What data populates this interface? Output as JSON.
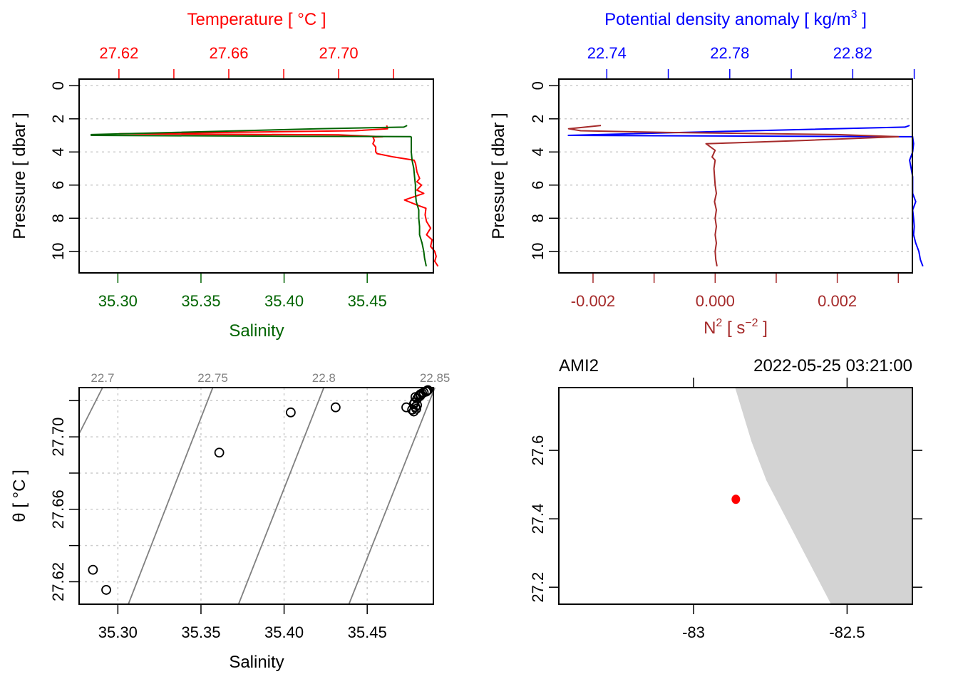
{
  "chart_data": [
    {
      "id": "profile-temperature-salinity",
      "type": "line",
      "title_top": "Temperature [ °C ]",
      "xlabel_bottom": "Salinity",
      "ylabel": "Pressure [ dbar ]",
      "colors": {
        "temperature": "#ff0000",
        "salinity": "#006400"
      },
      "top_axis": {
        "range": [
          27.6055,
          27.7345
        ],
        "ticks": [
          27.62,
          27.64,
          27.66,
          27.68,
          27.7,
          27.72
        ],
        "labels": [
          "27.62",
          "",
          "27.66",
          "",
          "27.70",
          ""
        ]
      },
      "bottom_axis": {
        "range": [
          35.2767,
          35.4898
        ],
        "ticks": [
          35.3,
          35.35,
          35.4,
          35.45
        ],
        "labels": [
          "35.30",
          "35.35",
          "35.40",
          "35.45"
        ]
      },
      "y_axis": {
        "range": [
          11.3,
          -0.4
        ],
        "ticks": [
          0,
          2,
          4,
          6,
          8,
          10
        ],
        "labels": [
          "0",
          "2",
          "4",
          "6",
          "8",
          "10"
        ],
        "grid": true
      },
      "series": [
        {
          "name": "Temperature",
          "axis": "top",
          "points": [
            [
              27.7175,
              2.4
            ],
            [
              27.7178,
              2.6
            ],
            [
              27.706,
              2.72
            ],
            [
              27.62,
              2.9
            ],
            [
              27.7,
              2.97
            ],
            [
              27.716,
              3.08
            ],
            [
              27.7125,
              3.1
            ],
            [
              27.713,
              3.3
            ],
            [
              27.7125,
              3.5
            ],
            [
              27.7135,
              3.7
            ],
            [
              27.7135,
              4.0
            ],
            [
              27.714,
              4.1
            ],
            [
              27.72,
              4.3
            ],
            [
              27.7275,
              4.5
            ],
            [
              27.728,
              4.7
            ],
            [
              27.7285,
              5.2
            ],
            [
              27.7295,
              5.6
            ],
            [
              27.7285,
              5.8
            ],
            [
              27.7302,
              6.0
            ],
            [
              27.7285,
              6.3
            ],
            [
              27.731,
              6.5
            ],
            [
              27.724,
              6.9
            ],
            [
              27.7285,
              7.2
            ],
            [
              27.7318,
              7.4
            ],
            [
              27.7315,
              7.8
            ],
            [
              27.732,
              8.2
            ],
            [
              27.7335,
              8.6
            ],
            [
              27.732,
              9.0
            ],
            [
              27.734,
              9.3
            ],
            [
              27.7335,
              9.7
            ],
            [
              27.735,
              10.0
            ],
            [
              27.7355,
              10.3
            ],
            [
              27.735,
              10.6
            ],
            [
              27.7362,
              10.9
            ]
          ]
        },
        {
          "name": "Salinity",
          "axis": "bottom",
          "points": [
            [
              35.474,
              2.4
            ],
            [
              35.472,
              2.5
            ],
            [
              35.42,
              2.6
            ],
            [
              35.284,
              2.95
            ],
            [
              35.284,
              3.0
            ],
            [
              35.4,
              3.05
            ],
            [
              35.476,
              3.07
            ],
            [
              35.4765,
              3.1
            ],
            [
              35.4765,
              3.5
            ],
            [
              35.4765,
              4.0
            ],
            [
              35.477,
              4.5
            ],
            [
              35.478,
              5.0
            ],
            [
              35.4785,
              5.5
            ],
            [
              35.479,
              6.0
            ],
            [
              35.479,
              6.5
            ],
            [
              35.4795,
              7.0
            ],
            [
              35.481,
              7.5
            ],
            [
              35.481,
              8.0
            ],
            [
              35.4815,
              8.5
            ],
            [
              35.4815,
              9.0
            ],
            [
              35.483,
              9.5
            ],
            [
              35.484,
              10.0
            ],
            [
              35.4845,
              10.4
            ],
            [
              35.4855,
              10.9
            ]
          ]
        }
      ]
    },
    {
      "id": "profile-density-n2",
      "type": "line",
      "title_top": "Potential density anomaly [ kg/m³ ]",
      "xlabel_bottom": "N² [ s⁻² ]",
      "ylabel": "Pressure [ dbar ]",
      "colors": {
        "density": "#0000ff",
        "n2": "#a52a2a"
      },
      "top_axis": {
        "range": [
          22.7244,
          22.8394
        ],
        "ticks": [
          22.74,
          22.76,
          22.78,
          22.8,
          22.82,
          22.84
        ],
        "labels": [
          "22.74",
          "",
          "22.78",
          "",
          "22.82",
          ""
        ]
      },
      "bottom_axis": {
        "range": [
          -0.00256,
          0.00323
        ],
        "ticks": [
          -0.002,
          -0.001,
          0.0,
          0.001,
          0.002,
          0.003
        ],
        "labels": [
          "-0.002",
          "",
          "0.000",
          "",
          "0.002",
          ""
        ]
      },
      "y_axis": {
        "range": [
          11.3,
          -0.4
        ],
        "ticks": [
          0,
          2,
          4,
          6,
          8,
          10
        ],
        "labels": [
          "0",
          "2",
          "4",
          "6",
          "8",
          "10"
        ],
        "grid": true
      },
      "series": [
        {
          "name": "Potential density anomaly",
          "axis": "top",
          "points": [
            [
              22.8385,
              2.4
            ],
            [
              22.837,
              2.5
            ],
            [
              22.78,
              2.75
            ],
            [
              22.7275,
              3.0
            ],
            [
              22.8,
              3.05
            ],
            [
              22.8395,
              3.08
            ],
            [
              22.8395,
              3.1
            ],
            [
              22.8398,
              3.5
            ],
            [
              22.8395,
              4.0
            ],
            [
              22.8385,
              4.5
            ],
            [
              22.839,
              5.0
            ],
            [
              22.8395,
              5.5
            ],
            [
              22.8395,
              6.0
            ],
            [
              22.8395,
              6.5
            ],
            [
              22.8405,
              7.0
            ],
            [
              22.8395,
              7.5
            ],
            [
              22.8398,
              8.0
            ],
            [
              22.84,
              8.5
            ],
            [
              22.8398,
              9.0
            ],
            [
              22.8405,
              9.5
            ],
            [
              22.8415,
              10.0
            ],
            [
              22.842,
              10.5
            ],
            [
              22.8428,
              10.9
            ]
          ]
        },
        {
          "name": "N2",
          "axis": "bottom",
          "points": [
            [
              -0.00187,
              2.4
            ],
            [
              -0.0024,
              2.6
            ],
            [
              -0.0022,
              2.72
            ],
            [
              -0.0008,
              2.82
            ],
            [
              0.002,
              2.95
            ],
            [
              0.003,
              3.08
            ],
            [
              0.0015,
              3.3
            ],
            [
              0.0003,
              3.45
            ],
            [
              -0.00015,
              3.5
            ],
            [
              0.0,
              3.9
            ],
            [
              -5e-05,
              4.3
            ],
            [
              0.0,
              4.5
            ],
            [
              -2e-05,
              5.0
            ],
            [
              0.0,
              6.0
            ],
            [
              2e-05,
              6.5
            ],
            [
              -1e-05,
              7.0
            ],
            [
              2e-05,
              7.5
            ],
            [
              0.0,
              8.0
            ],
            [
              2e-05,
              8.5
            ],
            [
              0.0,
              9.0
            ],
            [
              2e-05,
              9.5
            ],
            [
              0.0,
              10.0
            ],
            [
              1e-05,
              10.5
            ],
            [
              3e-05,
              10.9
            ]
          ]
        }
      ]
    },
    {
      "id": "ts-diagram",
      "type": "scatter",
      "xlabel": "Salinity",
      "ylabel": "θ [ °C ]",
      "x_axis": {
        "range": [
          35.2767,
          35.4898
        ],
        "ticks": [
          35.3,
          35.35,
          35.4,
          35.45
        ],
        "labels": [
          "35.30",
          "35.35",
          "35.40",
          "35.45"
        ],
        "grid": true
      },
      "y_axis": {
        "range": [
          27.6076,
          27.7272
        ],
        "ticks": [
          27.62,
          27.64,
          27.66,
          27.68,
          27.7,
          27.72
        ],
        "labels": [
          "27.62",
          "",
          "27.66",
          "",
          "27.70",
          ""
        ],
        "grid": true
      },
      "isopycnals": [
        {
          "label": "22.7",
          "top_x": 35.2908,
          "left_y": 27.7017
        },
        {
          "label": "22.75",
          "top_x": 35.3571,
          "bottom_x": 35.3063
        },
        {
          "label": "22.8",
          "top_x": 35.4239,
          "bottom_x": 35.3726
        },
        {
          "label": "22.85",
          "top_x": 35.4907,
          "bottom_x": 35.439
        }
      ],
      "points": [
        [
          35.285,
          27.6266
        ],
        [
          35.293,
          27.6155
        ],
        [
          35.361,
          27.6913
        ],
        [
          35.404,
          27.7135
        ],
        [
          35.431,
          27.7163
        ],
        [
          35.4735,
          27.7163
        ],
        [
          35.477,
          27.715
        ],
        [
          35.478,
          27.714
        ],
        [
          35.479,
          27.7165
        ],
        [
          35.4785,
          27.719
        ],
        [
          35.48,
          27.721
        ],
        [
          35.479,
          27.722
        ],
        [
          35.481,
          27.7225
        ],
        [
          35.482,
          27.7228
        ],
        [
          35.482,
          27.7235
        ],
        [
          35.483,
          27.724
        ],
        [
          35.484,
          27.7245
        ],
        [
          35.4855,
          27.725
        ],
        [
          35.486,
          27.7255
        ],
        [
          35.4865,
          27.7258
        ],
        [
          35.48,
          27.7175
        ],
        [
          35.4795,
          27.7155
        ],
        [
          35.478,
          27.718
        ]
      ]
    },
    {
      "id": "station-map",
      "type": "scatter",
      "title_left": "AMI2",
      "title_right": "2022-05-25 03:21:00",
      "x_axis": {
        "range": [
          -83.4387,
          -82.2874
        ],
        "ticks": [
          -83,
          -82.5
        ],
        "labels": [
          "-83",
          "-82.5"
        ]
      },
      "y_axis": {
        "range": [
          27.1504,
          27.7835
        ],
        "ticks": [
          27.2,
          27.4,
          27.6
        ],
        "labels": [
          "27.2",
          "27.4",
          "27.6"
        ]
      },
      "land_color": "#d3d3d3",
      "coastline": [
        [
          -82.8647,
          27.7835
        ],
        [
          -82.8112,
          27.6258
        ],
        [
          -82.7623,
          27.5112
        ],
        [
          -82.5523,
          27.1504
        ]
      ],
      "station": {
        "lon": -82.8623,
        "lat": 27.4571,
        "color": "#ff0000"
      }
    }
  ]
}
